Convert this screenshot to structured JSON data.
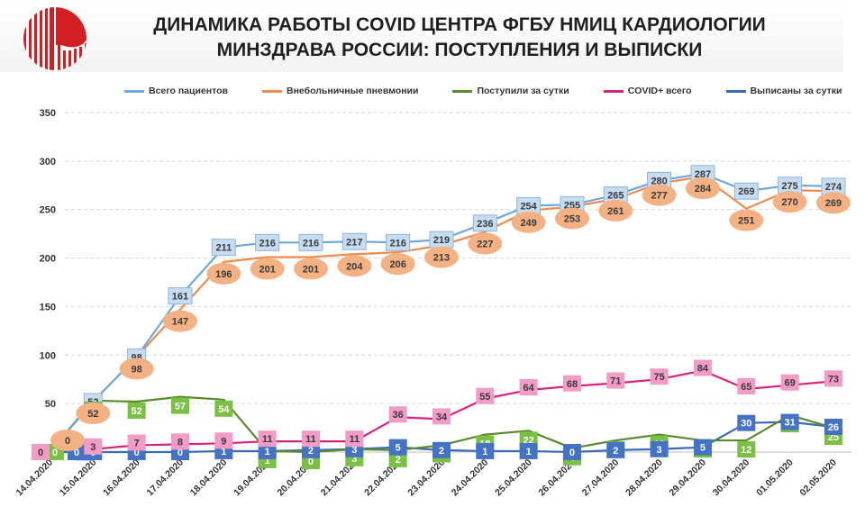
{
  "header": {
    "title_line1": "ДИНАМИКА РАБОТЫ COVID ЦЕНТРА ФГБУ НМИЦ КАРДИОЛОГИИ",
    "title_line2": "МИНЗДРАВА РОССИИ: ПОСТУПЛЕНИЯ И ВЫПИСКИ"
  },
  "chart_data": {
    "type": "line",
    "title": "ДИНАМИКА РАБОТЫ COVID ЦЕНТРА ФГБУ НМИЦ КАРДИОЛОГИИ МИНЗДРАВА РОССИИ: ПОСТУПЛЕНИЯ И ВЫПИСКИ",
    "xlabel": "",
    "ylabel": "",
    "ylim": [
      0,
      350
    ],
    "yticks": [
      0,
      50,
      100,
      150,
      200,
      250,
      300,
      350
    ],
    "grid": true,
    "legend_position": "top",
    "categories": [
      "14.04.2020",
      "15.04.2020",
      "16.04.2020",
      "17.04.2020",
      "18.04.2020",
      "19.04.2020",
      "20.04.2020",
      "21.04.2020",
      "22.04.2020",
      "23.04.2020",
      "24.04.2020",
      "25.04.2020",
      "26.04.2020",
      "27.04.2020",
      "28.04.2020",
      "29.04.2020",
      "30.04.2020",
      "01.05.2020",
      "02.05.2020"
    ],
    "series": [
      {
        "name": "Всего пациентов",
        "color": "#6fa8dc",
        "label_fill": "#c6dcf0",
        "label_shape": "square",
        "values": [
          0,
          52,
          98,
          161,
          211,
          216,
          216,
          217,
          216,
          219,
          236,
          254,
          255,
          265,
          280,
          287,
          269,
          275,
          274
        ]
      },
      {
        "name": "Внебольничные пневмонии",
        "color": "#ed8c4e",
        "label_fill": "#f4b183",
        "label_shape": "ellipse",
        "values": [
          0,
          52,
          98,
          147,
          196,
          201,
          201,
          204,
          206,
          213,
          227,
          249,
          253,
          261,
          277,
          284,
          251,
          270,
          269
        ]
      },
      {
        "name": "Поступили за сутки",
        "color": "#5a8a2e",
        "label_fill": "#7ac143",
        "label_shape": "square",
        "values": [
          0,
          53,
          52,
          57,
          54,
          1,
          0,
          3,
          2,
          7,
          18,
          22,
          4,
          12,
          18,
          12,
          12,
          38,
          25
        ]
      },
      {
        "name": "COVID+ всего",
        "color": "#d6247a",
        "label_fill": "#f19bc6",
        "label_shape": "square",
        "values": [
          0,
          3,
          7,
          8,
          9,
          11,
          11,
          11,
          36,
          34,
          55,
          64,
          68,
          71,
          75,
          84,
          65,
          69,
          73
        ]
      },
      {
        "name": "Выписаны за сутки",
        "color": "#3a6cb5",
        "label_fill": "#4472c4",
        "label_shape": "square",
        "values": [
          0,
          0,
          0,
          0,
          1,
          1,
          2,
          3,
          5,
          2,
          1,
          1,
          0,
          2,
          3,
          5,
          30,
          31,
          26
        ]
      }
    ]
  }
}
